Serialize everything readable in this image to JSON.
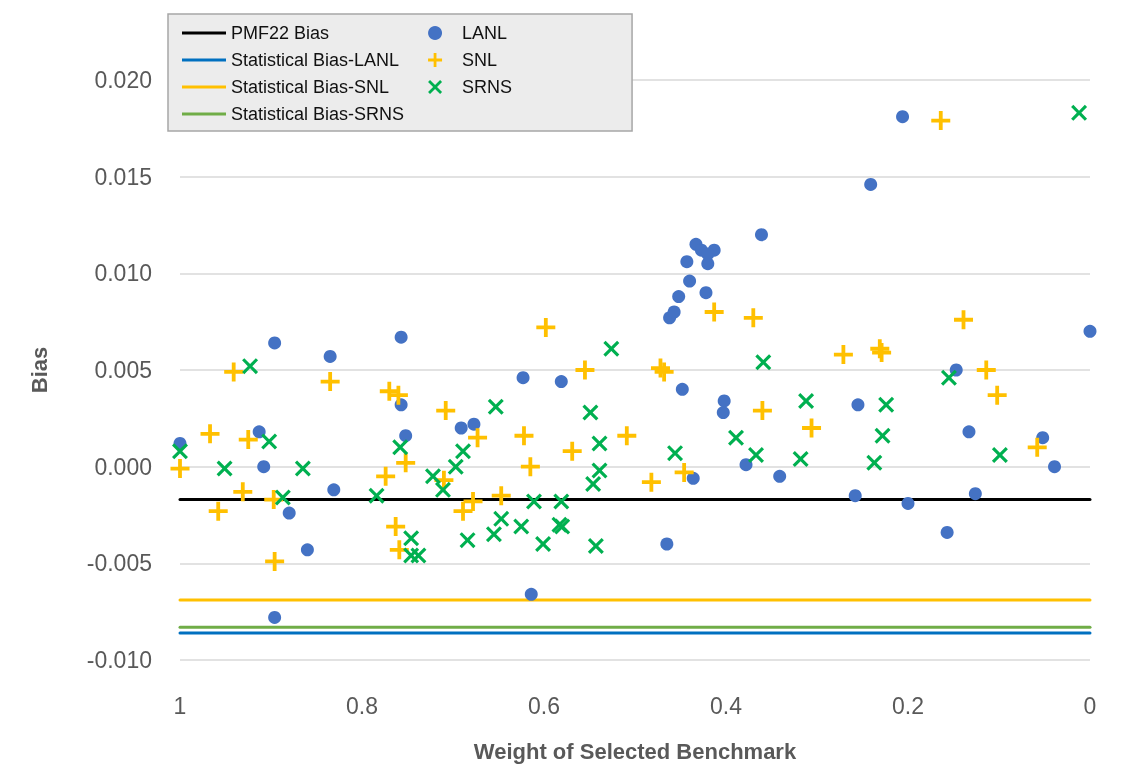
{
  "chart_data": {
    "type": "scatter",
    "xlabel": "Weight of Selected Benchmark",
    "ylabel": "Bias",
    "xlim": [
      1,
      0
    ],
    "xticks": [
      1,
      0.8,
      0.6,
      0.4,
      0.2,
      0
    ],
    "ylim": [
      -0.01,
      0.02
    ],
    "yticks": [
      {
        "value": -0.01,
        "label": "-0.010"
      },
      {
        "value": -0.005,
        "label": "-0.005"
      },
      {
        "value": 0,
        "label": "0.000"
      },
      {
        "value": 0.005,
        "label": "0.005"
      },
      {
        "value": 0.01,
        "label": "0.010"
      },
      {
        "value": 0.015,
        "label": "0.015"
      },
      {
        "value": 0.02,
        "label": "0.020"
      }
    ],
    "grid": "y",
    "legend": "top left",
    "series": [
      {
        "type": "line",
        "name": "PMF22 Bias",
        "color": "#000000",
        "marker": "none",
        "x": [
          1,
          0
        ],
        "values": [
          -0.0017,
          -0.0017
        ]
      },
      {
        "type": "line",
        "name": "Statistical Bias-LANL",
        "color": "#0070c0",
        "marker": "none",
        "x": [
          1,
          0
        ],
        "values": [
          -0.0086,
          -0.0086
        ]
      },
      {
        "type": "line",
        "name": "Statistical Bias-SNL",
        "color": "#ffc000",
        "marker": "none",
        "x": [
          1,
          0
        ],
        "values": [
          -0.0069,
          -0.0069
        ]
      },
      {
        "type": "line",
        "name": "Statistical Bias-SRNS",
        "color": "#70ad47",
        "marker": "none",
        "x": [
          1,
          0
        ],
        "values": [
          -0.0083,
          -0.0083
        ]
      },
      {
        "name": "LANL",
        "color": "#4472c4",
        "marker": "circle",
        "x": [
          1.0,
          0.896,
          0.913,
          0.908,
          0.896,
          0.88,
          0.86,
          0.835,
          0.831,
          0.757,
          0.757,
          0.752,
          0.691,
          0.677,
          0.623,
          0.614,
          0.581,
          0.465,
          0.448,
          0.436,
          0.402,
          0.403,
          0.378,
          0.341,
          0.462,
          0.457,
          0.452,
          0.422,
          0.44,
          0.443,
          0.42,
          0.433,
          0.427,
          0.413,
          0.42,
          0.361,
          0.241,
          0.206,
          0.255,
          0.258,
          0.2,
          0.157,
          0.147,
          0.133,
          0.126,
          0.052,
          0.039,
          0.0
        ],
        "values": [
          0.0012,
          0.0064,
          0.0018,
          0.0,
          -0.0078,
          -0.0024,
          -0.0043,
          0.0057,
          -0.0012,
          0.0067,
          0.0032,
          0.0016,
          0.002,
          0.0022,
          0.0046,
          -0.0066,
          0.0044,
          -0.004,
          0.004,
          -0.0006,
          0.0034,
          0.0028,
          0.0001,
          -0.0005,
          0.0077,
          0.008,
          0.0088,
          0.009,
          0.0096,
          0.0106,
          0.0105,
          0.0115,
          0.0112,
          0.0112,
          0.011,
          0.012,
          0.0146,
          0.0181,
          0.0032,
          -0.0015,
          -0.0019,
          -0.0034,
          0.005,
          0.0018,
          -0.0014,
          0.0015,
          0.0,
          0.007
        ]
      },
      {
        "name": "SNL",
        "color": "#ffc000",
        "marker": "plus",
        "x": [
          1.0,
          0.967,
          0.958,
          0.941,
          0.931,
          0.925,
          0.897,
          0.896,
          0.835,
          0.774,
          0.77,
          0.76,
          0.763,
          0.759,
          0.752,
          0.71,
          0.708,
          0.689,
          0.678,
          0.673,
          0.647,
          0.622,
          0.615,
          0.598,
          0.569,
          0.555,
          0.509,
          0.482,
          0.472,
          0.468,
          0.446,
          0.413,
          0.37,
          0.36,
          0.306,
          0.271,
          0.231,
          0.229,
          0.164,
          0.139,
          0.114,
          0.102,
          0.058
        ],
        "values": [
          -0.0001,
          0.0017,
          -0.0023,
          0.0049,
          -0.0013,
          0.0014,
          -0.0017,
          -0.0049,
          0.0044,
          -0.0005,
          0.0039,
          0.0037,
          -0.0031,
          -0.0043,
          0.0002,
          -0.0007,
          0.0029,
          -0.0023,
          -0.0018,
          0.0015,
          -0.0015,
          0.0016,
          0.0,
          0.0072,
          0.0008,
          0.005,
          0.0016,
          -0.0008,
          0.0051,
          0.0049,
          -0.0003,
          0.008,
          0.0077,
          0.0029,
          0.002,
          0.0058,
          0.0061,
          0.0059,
          0.0179,
          0.0076,
          0.005,
          0.0037,
          0.001
        ]
      },
      {
        "name": "SRNS",
        "color": "#00b050",
        "marker": "cross",
        "x": [
          1.0,
          0.951,
          0.923,
          0.902,
          0.887,
          0.865,
          0.784,
          0.758,
          0.746,
          0.746,
          0.738,
          0.722,
          0.711,
          0.697,
          0.689,
          0.684,
          0.655,
          0.653,
          0.647,
          0.625,
          0.611,
          0.601,
          0.583,
          0.58,
          0.581,
          0.549,
          0.546,
          0.543,
          0.539,
          0.539,
          0.526,
          0.456,
          0.389,
          0.367,
          0.359,
          0.318,
          0.312,
          0.237,
          0.228,
          0.224,
          0.155,
          0.099,
          0.012
        ],
        "values": [
          0.0008,
          -0.0001,
          0.0052,
          0.0013,
          -0.0016,
          -0.0001,
          -0.0015,
          0.001,
          -0.0037,
          -0.0046,
          -0.0046,
          -0.0005,
          -0.0012,
          0.0,
          0.0008,
          -0.0038,
          -0.0035,
          0.0031,
          -0.0027,
          -0.0031,
          -0.0018,
          -0.004,
          -0.003,
          -0.0031,
          -0.0018,
          0.0028,
          -0.0009,
          -0.0041,
          0.0012,
          -0.0002,
          0.0061,
          0.0007,
          0.0015,
          0.0006,
          0.0054,
          0.0004,
          0.0034,
          0.0002,
          0.0016,
          0.0032,
          0.0046,
          0.0006,
          0.0183
        ]
      }
    ]
  }
}
